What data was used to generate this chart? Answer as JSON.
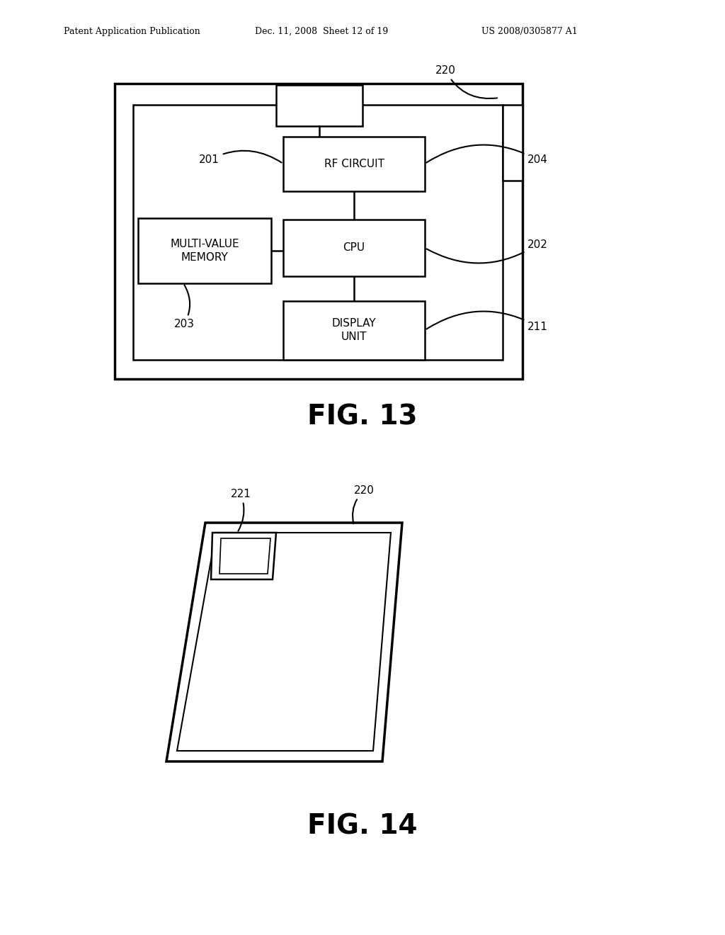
{
  "bg_color": "#ffffff",
  "header_left": "Patent Application Publication",
  "header_mid": "Dec. 11, 2008  Sheet 12 of 19",
  "header_right": "US 2008/0305877 A1",
  "fig13_label": "FIG. 13",
  "fig14_label": "FIG. 14",
  "label_220": "220",
  "label_201": "201",
  "label_202": "202",
  "label_203": "203",
  "label_204": "204",
  "label_211": "211",
  "label_221": "221",
  "label_220b": "220"
}
